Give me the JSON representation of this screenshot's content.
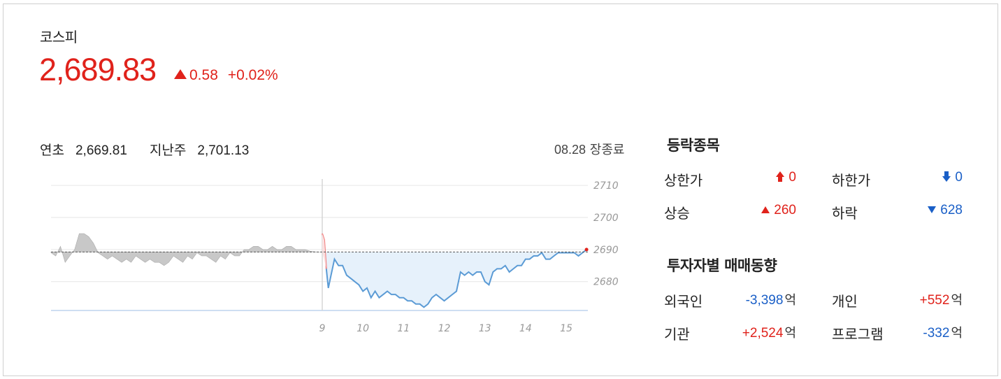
{
  "index": {
    "name": "코스피",
    "value": "2,689.83",
    "change": "0.58",
    "change_pct": "+0.02%"
  },
  "reference": {
    "ytd_label": "연초",
    "ytd_value": "2,669.81",
    "lastweek_label": "지난주",
    "lastweek_value": "2,701.13",
    "date": "08.28",
    "status": "장종료"
  },
  "chart_data": {
    "type": "line",
    "x_ticks": [
      "9",
      "10",
      "11",
      "12",
      "13",
      "14",
      "15"
    ],
    "y_ticks": [
      "2710",
      "2700",
      "2690",
      "2680"
    ],
    "ylim": [
      2671,
      2712
    ],
    "baseline": 2689.25,
    "previous_session": [
      2689,
      2688,
      2691,
      2686,
      2688,
      2690,
      2695,
      2695,
      2694,
      2692,
      2689,
      2688,
      2687,
      2688,
      2687,
      2686,
      2687,
      2686,
      2688,
      2687,
      2686,
      2687,
      2686,
      2686,
      2685,
      2686,
      2688,
      2687,
      2686,
      2688,
      2687,
      2689,
      2688,
      2688,
      2687,
      2686,
      2688,
      2687,
      2689,
      2688,
      2688,
      2690,
      2690,
      2691,
      2691,
      2690,
      2690,
      2691,
      2690,
      2690,
      2691,
      2691,
      2690,
      2690,
      2690,
      2689.5,
      2689.3,
      2689.2
    ],
    "series": [
      {
        "x": [
          9.0,
          9.05,
          9.1,
          9.15,
          9.2,
          9.3,
          9.4,
          9.5,
          9.6,
          9.7,
          9.8,
          9.9,
          10.0,
          10.1,
          10.2,
          10.3,
          10.4,
          10.5,
          10.6,
          10.7,
          10.8,
          10.9,
          11.0,
          11.1,
          11.2,
          11.3,
          11.4,
          11.5,
          11.6,
          11.7,
          11.8,
          11.9,
          12.0,
          12.1,
          12.2,
          12.3,
          12.4,
          12.5,
          12.6,
          12.7,
          12.8,
          12.9,
          13.0,
          13.1,
          13.2,
          13.3,
          13.4,
          13.5,
          13.6,
          13.7,
          13.8,
          13.9,
          14.0,
          14.1,
          14.2,
          14.3,
          14.4,
          14.5,
          14.6,
          14.7,
          14.8,
          14.9,
          15.0,
          15.1,
          15.2,
          15.3,
          15.4,
          15.5
        ],
        "values": [
          2695,
          2693,
          2684,
          2678,
          2681,
          2687,
          2685,
          2685,
          2682,
          2681,
          2680,
          2679,
          2677,
          2678,
          2675,
          2677,
          2675,
          2676,
          2677,
          2676,
          2676,
          2675,
          2675,
          2674,
          2674,
          2673,
          2673,
          2672,
          2673,
          2675,
          2676,
          2675,
          2674,
          2675,
          2676,
          2677,
          2683,
          2682,
          2683,
          2682,
          2683,
          2683,
          2680,
          2679,
          2683,
          2684,
          2684,
          2685,
          2683,
          2684,
          2685,
          2685,
          2687,
          2687,
          2688,
          2688,
          2689,
          2687,
          2687,
          2688,
          2689,
          2689,
          2689,
          2689,
          2689,
          2688,
          2689,
          2690
        ],
        "color": "#5b9bd5"
      }
    ],
    "colors": {
      "up": "#e0221b",
      "down": "#1a5fc7",
      "area": "#e6f1fb",
      "gray": "#c8c8c8"
    }
  },
  "advance_decline": {
    "title": "등락종목",
    "upper_limit_label": "상한가",
    "upper_limit_value": "0",
    "lower_limit_label": "하한가",
    "lower_limit_value": "0",
    "rise_label": "상승",
    "rise_value": "260",
    "fall_label": "하락",
    "fall_value": "628"
  },
  "investor_trend": {
    "title": "투자자별 매매동향",
    "unit": "억",
    "foreign_label": "외국인",
    "foreign_value": "-3,398",
    "individual_label": "개인",
    "individual_value": "+552",
    "institution_label": "기관",
    "institution_value": "+2,524",
    "program_label": "프로그램",
    "program_value": "-332"
  }
}
